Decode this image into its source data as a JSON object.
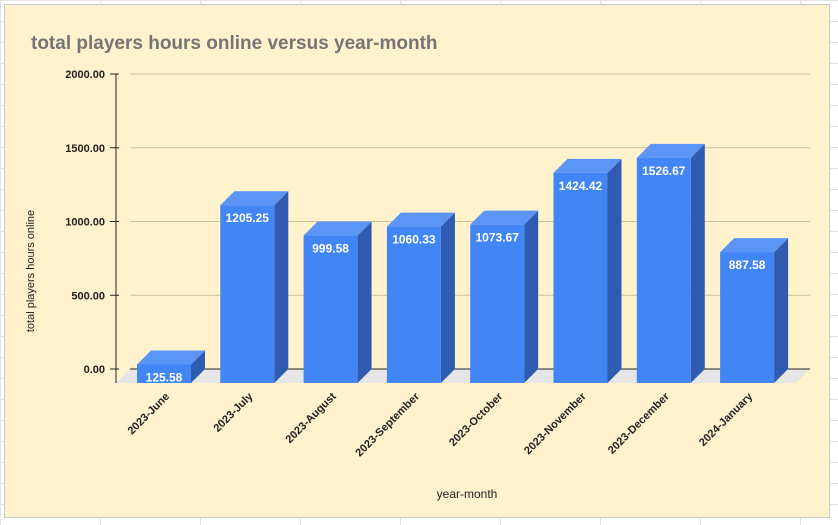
{
  "chart_data": {
    "type": "bar",
    "title": "total players hours online versus year-month",
    "xlabel": "year-month",
    "ylabel": "total players hours online",
    "categories": [
      "2023-June",
      "2023-July",
      "2023-August",
      "2023-September",
      "2023-October",
      "2023-November",
      "2023-December",
      "2024-January"
    ],
    "values": [
      125.58,
      1205.25,
      999.58,
      1060.33,
      1073.67,
      1424.42,
      1526.67,
      887.58
    ],
    "value_labels": [
      "125.58",
      "1205.25",
      "999.58",
      "1060.33",
      "1073.67",
      "1424.42",
      "1526.67",
      "887.58"
    ],
    "yticks": [
      "0.00",
      "500.00",
      "1000.00",
      "1500.00",
      "2000.00"
    ],
    "ylim": [
      0,
      2000
    ],
    "grid": true,
    "legend": "none",
    "style": "3d",
    "colors": {
      "bar_front": "#4285f4",
      "bar_side": "#2f5bb0",
      "bar_top": "#5b95f6",
      "background": "#fff2cc",
      "gridline": "#cdbf96",
      "floor": "#e6e6e6"
    }
  }
}
